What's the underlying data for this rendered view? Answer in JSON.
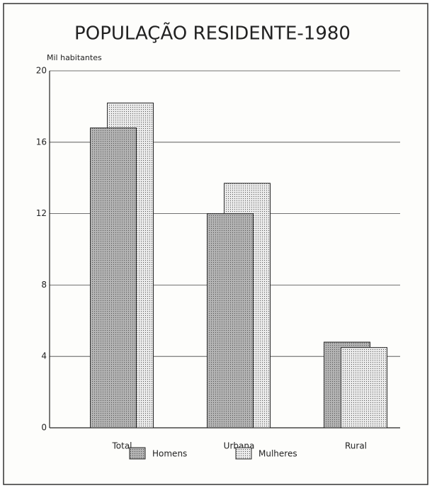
{
  "chart_data": {
    "type": "bar",
    "title": "POPULAÇÃO   RESIDENTE-1980",
    "y_label": "Mil habitantes",
    "categories": [
      "Total",
      "Urbana",
      "Rural"
    ],
    "series": [
      {
        "name": "Homens",
        "color": "#b4b4b4",
        "values": [
          16.8,
          12.0,
          4.8
        ]
      },
      {
        "name": "Mulheres",
        "color": "#ececec",
        "values": [
          18.2,
          13.7,
          4.5
        ]
      }
    ],
    "ylim": [
      0,
      20
    ],
    "yticks": [
      0,
      4,
      8,
      12,
      16,
      20
    ],
    "grid": true
  }
}
